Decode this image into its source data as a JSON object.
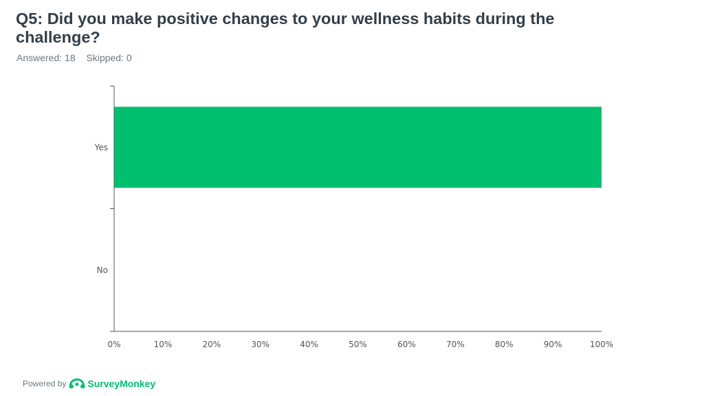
{
  "question": {
    "title": "Q5: Did you make positive changes to your wellness habits during the challenge?",
    "answered": "Answered: 18",
    "skipped": "Skipped: 0"
  },
  "chart_data": {
    "type": "bar",
    "orientation": "horizontal",
    "categories": [
      "Yes",
      "No"
    ],
    "values": [
      100,
      0
    ],
    "unit": "%",
    "xlim": [
      0,
      100
    ],
    "xticks": [
      "0%",
      "10%",
      "20%",
      "30%",
      "40%",
      "50%",
      "60%",
      "70%",
      "80%",
      "90%",
      "100%"
    ],
    "grid": false,
    "bar_color": "#00bf6f",
    "axis_color": "#555555"
  },
  "footer": {
    "powered_by": "Powered by",
    "brand": "SurveyMonkey",
    "brand_color": "#00bf6f",
    "logo_icon": "surveymonkey-logo-icon"
  }
}
